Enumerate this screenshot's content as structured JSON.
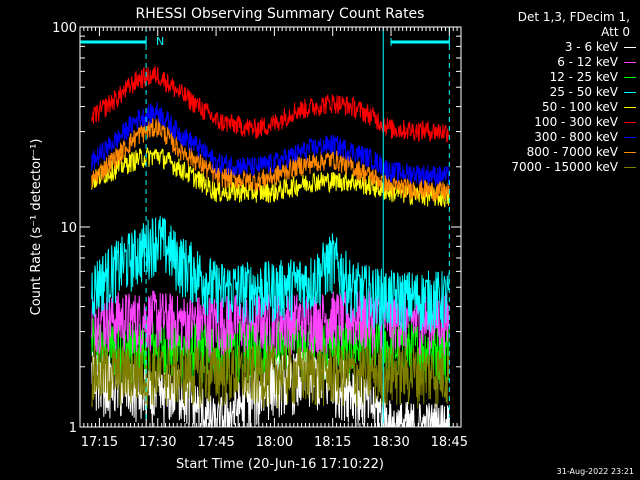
{
  "chart_data": {
    "type": "line",
    "title": "RHESSI Observing Summary Count Rates",
    "xlabel": "Start Time (20-Jun-16 17:10:22)",
    "ylabel": "Count Rate (s⁻¹ detector⁻¹)",
    "y_scale": "log",
    "ylim": [
      1,
      100
    ],
    "xlim": [
      "17:10",
      "18:48"
    ],
    "x_ticks": [
      "17:15",
      "17:30",
      "17:45",
      "18:00",
      "18:15",
      "18:30",
      "18:45"
    ],
    "y_ticks": [
      "1",
      "10",
      "100"
    ],
    "grid": false,
    "legend_position": "right",
    "legend_header": [
      "Det 1,3, FDecim 1,",
      "Att 0"
    ],
    "annotation": "N",
    "series": [
      {
        "name": "3 - 6 keV",
        "color": "#ffffff",
        "x": [
          "17:13",
          "17:25",
          "17:30",
          "17:35",
          "17:45",
          "18:00",
          "18:10",
          "18:20",
          "18:30",
          "18:45"
        ],
        "values": [
          1.8,
          1.5,
          1.4,
          1.6,
          1.0,
          1.7,
          1.8,
          1.6,
          1.0,
          1.0
        ]
      },
      {
        "name": "6 - 12 keV",
        "color": "#ff44ff",
        "x": [
          "17:13",
          "17:25",
          "17:30",
          "17:35",
          "17:45",
          "18:00",
          "18:10",
          "18:20",
          "18:30",
          "18:45"
        ],
        "values": [
          3.6,
          3.5,
          3.6,
          3.4,
          3.4,
          3.5,
          3.5,
          3.6,
          3.5,
          3.5
        ]
      },
      {
        "name": "12 - 25 keV",
        "color": "#00ff00",
        "x": [
          "17:13",
          "17:25",
          "17:30",
          "17:35",
          "17:45",
          "18:00",
          "18:10",
          "18:20",
          "18:30",
          "18:45"
        ],
        "values": [
          2.6,
          2.5,
          2.6,
          2.5,
          2.5,
          2.6,
          2.6,
          2.6,
          2.5,
          2.5
        ]
      },
      {
        "name": "25 - 50 keV",
        "color": "#00ffff",
        "x": [
          "17:13",
          "17:20",
          "17:25",
          "17:30",
          "17:35",
          "17:45",
          "18:00",
          "18:10",
          "18:15",
          "18:20",
          "18:30",
          "18:45"
        ],
        "values": [
          5.0,
          6.5,
          7.5,
          9.0,
          7.0,
          5.0,
          5.0,
          5.5,
          7.0,
          5.0,
          4.5,
          4.5
        ]
      },
      {
        "name": "50 - 100 keV",
        "color": "#ffff00",
        "x": [
          "17:13",
          "17:20",
          "17:25",
          "17:30",
          "17:35",
          "17:45",
          "18:00",
          "18:10",
          "18:20",
          "18:30",
          "18:45"
        ],
        "values": [
          17,
          20,
          22,
          23,
          20,
          15,
          15,
          17,
          17,
          15,
          14
        ]
      },
      {
        "name": "100 - 300 keV",
        "color": "#ff0000",
        "x": [
          "17:13",
          "17:20",
          "17:25",
          "17:30",
          "17:35",
          "17:45",
          "17:55",
          "18:00",
          "18:05",
          "18:10",
          "18:15",
          "18:20",
          "18:25",
          "18:30",
          "18:45"
        ],
        "values": [
          35,
          45,
          55,
          58,
          48,
          34,
          31,
          33,
          38,
          40,
          42,
          40,
          36,
          31,
          30
        ]
      },
      {
        "name": "300 - 800 keV",
        "color": "#0000ff",
        "x": [
          "17:13",
          "17:20",
          "17:25",
          "17:30",
          "17:35",
          "17:45",
          "17:55",
          "18:00",
          "18:05",
          "18:10",
          "18:15",
          "18:20",
          "18:25",
          "18:30",
          "18:45"
        ],
        "values": [
          21,
          28,
          35,
          38,
          30,
          21,
          20,
          21,
          23,
          25,
          26,
          24,
          22,
          19,
          18
        ]
      },
      {
        "name": "800 - 7000 keV",
        "color": "#ff8800",
        "x": [
          "17:13",
          "17:20",
          "17:25",
          "17:30",
          "17:35",
          "17:45",
          "17:55",
          "18:00",
          "18:05",
          "18:10",
          "18:15",
          "18:20",
          "18:25",
          "18:30",
          "18:45"
        ],
        "values": [
          17,
          23,
          29,
          32,
          25,
          18,
          17,
          18,
          20,
          21,
          22,
          20,
          18,
          16,
          15
        ]
      },
      {
        "name": "7000 - 15000 keV",
        "color": "#808000",
        "x": [
          "17:13",
          "17:25",
          "17:30",
          "17:35",
          "17:45",
          "18:00",
          "18:10",
          "18:20",
          "18:30",
          "18:45"
        ],
        "values": [
          1.9,
          1.9,
          1.9,
          1.9,
          1.9,
          1.9,
          1.9,
          1.9,
          1.9,
          1.9
        ]
      }
    ],
    "attenuator_bars": [
      {
        "from": "17:10",
        "to": "17:27"
      },
      {
        "from": "18:30",
        "to": "18:45"
      }
    ],
    "vertical_markers": [
      {
        "time": "17:27",
        "style": "dashed",
        "color": "#00ffff"
      },
      {
        "time": "18:28",
        "style": "solid",
        "color": "#00ffff"
      },
      {
        "time": "18:45",
        "style": "dashed",
        "color": "#00ffff"
      }
    ]
  },
  "footer_timestamp": "31-Aug-2022 23:21"
}
